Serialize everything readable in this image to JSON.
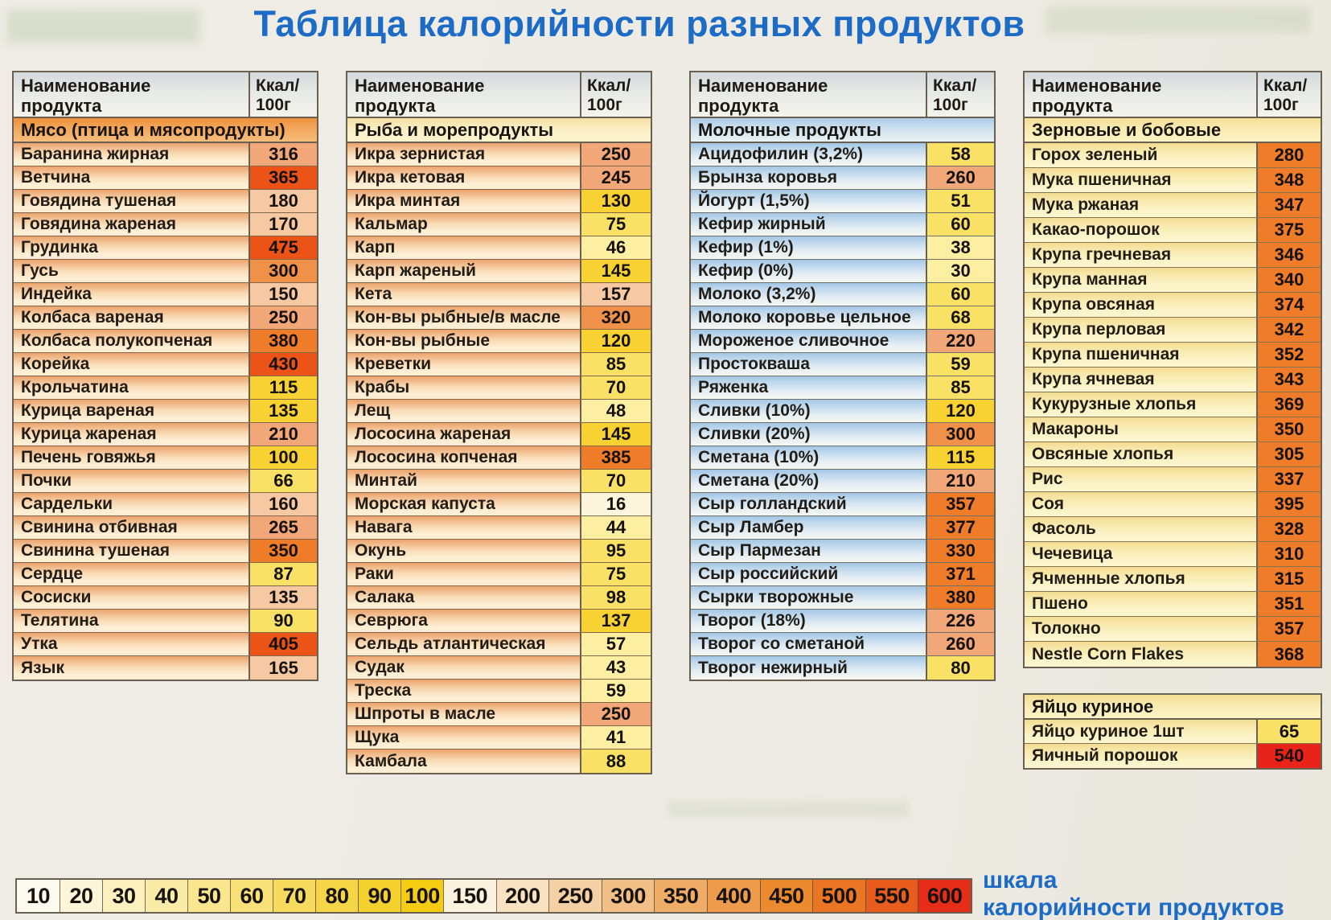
{
  "title": "Таблица калорийности разных продуктов",
  "accent_blue": "#1b6bc7",
  "column_headers": {
    "name_line1": "Наименование",
    "name_line2": "продукта",
    "kcal_line1": "Ккал/",
    "kcal_line2": "100г"
  },
  "palette": {
    "w": "#fdf6dd",
    "y1": "#fcefa2",
    "y2": "#f9e165",
    "y3": "#f7d232",
    "p1": "#f6c9a2",
    "p2": "#f2a778",
    "o1": "#f0914a",
    "o2": "#ee7c28",
    "r1": "#ec5316",
    "r2": "#e8241a"
  },
  "tables": [
    {
      "category": "Мясо (птица и мясопродукты)",
      "cat_style": "meat",
      "theme": "warm",
      "has_header": true,
      "rows": [
        [
          "Баранина жирная",
          "316",
          "p2"
        ],
        [
          "Ветчина",
          "365",
          "r1"
        ],
        [
          "Говядина тушеная",
          "180",
          "p1"
        ],
        [
          "Говядина жареная",
          "170",
          "p1"
        ],
        [
          "Грудинка",
          "475",
          "r1"
        ],
        [
          "Гусь",
          "300",
          "o1"
        ],
        [
          "Индейка",
          "150",
          "p1"
        ],
        [
          "Колбаса вареная",
          "250",
          "p2"
        ],
        [
          "Колбаса полукопченая",
          "380",
          "o2"
        ],
        [
          "Корейка",
          "430",
          "r1"
        ],
        [
          "Крольчатина",
          "115",
          "y3"
        ],
        [
          "Курица вареная",
          "135",
          "y3"
        ],
        [
          "Курица жареная",
          "210",
          "p2"
        ],
        [
          "Печень говяжья",
          "100",
          "y3"
        ],
        [
          "Почки",
          "66",
          "y2"
        ],
        [
          "Сардельки",
          "160",
          "p1"
        ],
        [
          "Свинина отбивная",
          "265",
          "p2"
        ],
        [
          "Свинина тушеная",
          "350",
          "o2"
        ],
        [
          "Сердце",
          "87",
          "y2"
        ],
        [
          "Сосиски",
          "135",
          "p1"
        ],
        [
          "Телятина",
          "90",
          "y2"
        ],
        [
          "Утка",
          "405",
          "r1"
        ],
        [
          "Язык",
          "165",
          "p1"
        ]
      ]
    },
    {
      "category": "Рыба и морепродукты",
      "cat_style": "cream",
      "theme": "warm",
      "has_header": true,
      "rows": [
        [
          "Икра зернистая",
          "250",
          "p2"
        ],
        [
          "Икра кетовая",
          "245",
          "p2"
        ],
        [
          "Икра минтая",
          "130",
          "y3"
        ],
        [
          "Кальмар",
          "75",
          "y2"
        ],
        [
          "Карп",
          "46",
          "y1"
        ],
        [
          "Карп жареный",
          "145",
          "y3"
        ],
        [
          "Кета",
          "157",
          "p1"
        ],
        [
          "Кон-вы рыбные/в масле",
          "320",
          "o1"
        ],
        [
          "Кон-вы рыбные",
          "120",
          "y3"
        ],
        [
          "Креветки",
          "85",
          "y2"
        ],
        [
          "Крабы",
          "70",
          "y2"
        ],
        [
          "Лещ",
          "48",
          "y1"
        ],
        [
          "Лососина жареная",
          "145",
          "y3"
        ],
        [
          "Лососина копченая",
          "385",
          "o2"
        ],
        [
          "Минтай",
          "70",
          "y2"
        ],
        [
          "Морская капуста",
          "16",
          "w"
        ],
        [
          "Навага",
          "44",
          "y1"
        ],
        [
          "Окунь",
          "95",
          "y2"
        ],
        [
          "Раки",
          "75",
          "y2"
        ],
        [
          "Салака",
          "98",
          "y2"
        ],
        [
          "Севрюга",
          "137",
          "y3"
        ],
        [
          "Сельдь атлантическая",
          "57",
          "y1"
        ],
        [
          "Судак",
          "43",
          "y1"
        ],
        [
          "Треска",
          "59",
          "y1"
        ],
        [
          "Шпроты в масле",
          "250",
          "p2"
        ],
        [
          "Щука",
          "41",
          "y1"
        ],
        [
          "Камбала",
          "88",
          "y2"
        ]
      ]
    },
    {
      "category": "Молочные продукты",
      "cat_style": "blue",
      "theme": "blue",
      "has_header": true,
      "rows": [
        [
          "Ацидофилин (3,2%)",
          "58",
          "y2"
        ],
        [
          "Брынза коровья",
          "260",
          "p2"
        ],
        [
          "Йогурт (1,5%)",
          "51",
          "y2"
        ],
        [
          "Кефир жирный",
          "60",
          "y2"
        ],
        [
          "Кефир (1%)",
          "38",
          "y1"
        ],
        [
          "Кефир (0%)",
          "30",
          "y1"
        ],
        [
          "Молоко (3,2%)",
          "60",
          "y2"
        ],
        [
          "Молоко коровье цельное",
          "68",
          "y2"
        ],
        [
          "Мороженое сливочное",
          "220",
          "p2"
        ],
        [
          "Простокваша",
          "59",
          "y2"
        ],
        [
          "Ряженка",
          "85",
          "y2"
        ],
        [
          "Сливки (10%)",
          "120",
          "y3"
        ],
        [
          "Сливки (20%)",
          "300",
          "o1"
        ],
        [
          "Сметана (10%)",
          "115",
          "y3"
        ],
        [
          "Сметана (20%)",
          "210",
          "p2"
        ],
        [
          "Сыр голландский",
          "357",
          "o2"
        ],
        [
          "Сыр Ламбер",
          "377",
          "o2"
        ],
        [
          "Сыр Пармезан",
          "330",
          "o2"
        ],
        [
          "Сыр российский",
          "371",
          "o2"
        ],
        [
          "Сырки творожные",
          "380",
          "o2"
        ],
        [
          "Творог (18%)",
          "226",
          "p2"
        ],
        [
          "Творог со сметаной",
          "260",
          "p2"
        ],
        [
          "Творог нежирный",
          "80",
          "y2"
        ]
      ]
    },
    {
      "category": "Зерновые и бобовые",
      "cat_style": "yellow",
      "theme": "yellow",
      "has_header": true,
      "rows": [
        [
          "Горох зеленый",
          "280",
          "o2"
        ],
        [
          "Мука пшеничная",
          "348",
          "o2"
        ],
        [
          "Мука ржаная",
          "347",
          "o2"
        ],
        [
          "Какао-порошок",
          "375",
          "o2"
        ],
        [
          "Крупа гречневая",
          "346",
          "o2"
        ],
        [
          "Крупа манная",
          "340",
          "o2"
        ],
        [
          "Крупа овсяная",
          "374",
          "o2"
        ],
        [
          "Крупа перловая",
          "342",
          "o2"
        ],
        [
          "Крупа пшеничная",
          "352",
          "o2"
        ],
        [
          "Крупа ячневая",
          "343",
          "o2"
        ],
        [
          "Кукурузные хлопья",
          "369",
          "o2"
        ],
        [
          "Макароны",
          "350",
          "o2"
        ],
        [
          "Овсяные хлопья",
          "305",
          "o2"
        ],
        [
          "Рис",
          "337",
          "o2"
        ],
        [
          "Соя",
          "395",
          "o2"
        ],
        [
          "Фасоль",
          "328",
          "o2"
        ],
        [
          "Чечевица",
          "310",
          "o2"
        ],
        [
          "Ячменные хлопья",
          "315",
          "o2"
        ],
        [
          "Пшено",
          "351",
          "o2"
        ],
        [
          "Толокно",
          "357",
          "o2"
        ],
        [
          "Nestle Corn Flakes",
          "368",
          "o2"
        ]
      ]
    },
    {
      "category": "Яйцо куриное",
      "cat_style": "yellow",
      "theme": "yellow",
      "has_header": false,
      "rows": [
        [
          "Яйцо куриное 1шт",
          "65",
          "y2"
        ],
        [
          "Яичный порошок",
          "540",
          "r2"
        ]
      ]
    }
  ],
  "scale": {
    "label_line1": "шкала",
    "label_line2": "калорийности продуктов",
    "cells": [
      [
        "10",
        "#fdfaf0"
      ],
      [
        "20",
        "#fcf5d8"
      ],
      [
        "30",
        "#fbf0be"
      ],
      [
        "40",
        "#faeba6"
      ],
      [
        "50",
        "#f9e68e"
      ],
      [
        "60",
        "#f8e176"
      ],
      [
        "70",
        "#f7db5e"
      ],
      [
        "80",
        "#f6d646"
      ],
      [
        "90",
        "#f5d12e"
      ],
      [
        "100",
        "#f4cc12"
      ],
      [
        "150",
        "#fbf2e0"
      ],
      [
        "200",
        "#f8e2c2"
      ],
      [
        "250",
        "#f5d0a4"
      ],
      [
        "300",
        "#f2bf86"
      ],
      [
        "350",
        "#f0ad68"
      ],
      [
        "400",
        "#ee9c4c"
      ],
      [
        "450",
        "#ec8a30"
      ],
      [
        "500",
        "#ea7524"
      ],
      [
        "550",
        "#e85c1e"
      ],
      [
        "600",
        "#e62d18"
      ]
    ]
  }
}
